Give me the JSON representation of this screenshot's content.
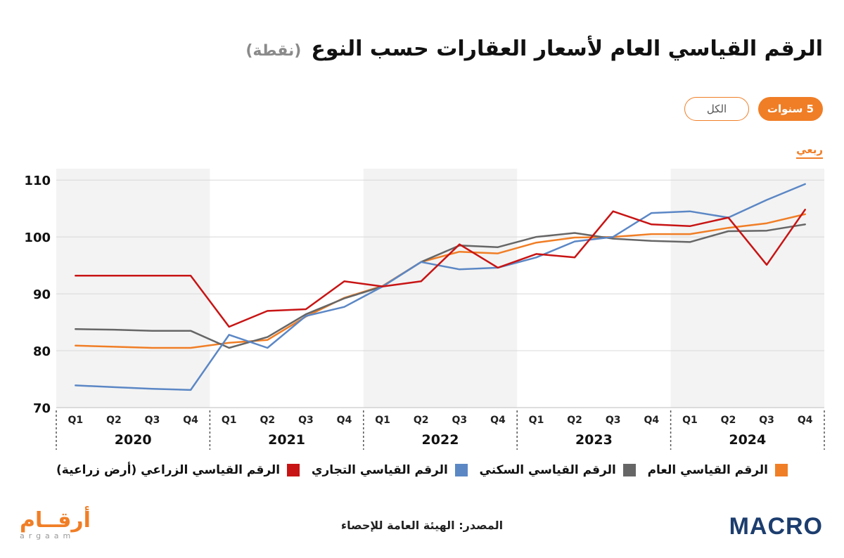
{
  "header": {
    "title": "الرقم القياسي العام لأسعار العقارات حسب النوع",
    "unit": "(نقطة)"
  },
  "filters": {
    "five_years": "5 سنوات",
    "all": "الكل"
  },
  "frequency": "ربعي",
  "source": "المصدر: الهيئة العامة للإحصاء",
  "logos": {
    "left_ar": "أرقــام",
    "left_en": "argaam",
    "right": "MACRO"
  },
  "colors": {
    "orange": "#f07e26",
    "gray": "#666666",
    "blue": "#5b87c5",
    "red": "#c81414",
    "band": "#f3f3f3"
  },
  "chart_data": {
    "type": "line",
    "x": [
      "Q1",
      "Q2",
      "Q3",
      "Q4",
      "Q1",
      "Q2",
      "Q3",
      "Q4",
      "Q1",
      "Q2",
      "Q3",
      "Q4",
      "Q1",
      "Q2",
      "Q3",
      "Q4",
      "Q1",
      "Q2",
      "Q3",
      "Q4"
    ],
    "x_groups": [
      {
        "label": "2020",
        "count": 4
      },
      {
        "label": "2021",
        "count": 4
      },
      {
        "label": "2022",
        "count": 4
      },
      {
        "label": "2023",
        "count": 4
      },
      {
        "label": "2024",
        "count": 4
      }
    ],
    "ylim": [
      70,
      112
    ],
    "yticks": [
      70,
      80,
      90,
      100,
      110
    ],
    "grid": true,
    "legend_position": "bottom",
    "series": [
      {
        "name": "الرقم القياسي العام",
        "color": "#f07e26",
        "values": [
          80.9,
          80.7,
          80.5,
          80.5,
          81.4,
          81.9,
          86.0,
          89.3,
          91.4,
          95.6,
          97.4,
          97.1,
          99.0,
          99.9,
          100.0,
          100.5,
          100.5,
          101.6,
          102.4,
          104.0
        ]
      },
      {
        "name": "الرقم القياسي السكني",
        "color": "#666666",
        "values": [
          83.8,
          83.7,
          83.5,
          83.5,
          80.5,
          82.4,
          86.4,
          89.2,
          91.3,
          95.6,
          98.5,
          98.2,
          100.0,
          100.7,
          99.7,
          99.3,
          99.1,
          101.0,
          101.1,
          102.2
        ]
      },
      {
        "name": "الرقم القياسي التجاري",
        "color": "#5b87c5",
        "values": [
          73.9,
          73.6,
          73.3,
          73.1,
          82.8,
          80.5,
          86.1,
          87.7,
          91.3,
          95.6,
          94.3,
          94.6,
          96.4,
          99.2,
          100.0,
          104.2,
          104.5,
          103.4,
          106.5,
          109.3
        ]
      },
      {
        "name": "الرقم القياسي الزراعي (أرض زراعية)",
        "color": "#c81414",
        "values": [
          93.2,
          93.2,
          93.2,
          93.2,
          84.2,
          87.0,
          87.3,
          92.2,
          91.3,
          92.2,
          98.7,
          94.6,
          97.0,
          96.4,
          104.5,
          102.2,
          101.9,
          103.4,
          95.1,
          104.8
        ]
      }
    ]
  }
}
